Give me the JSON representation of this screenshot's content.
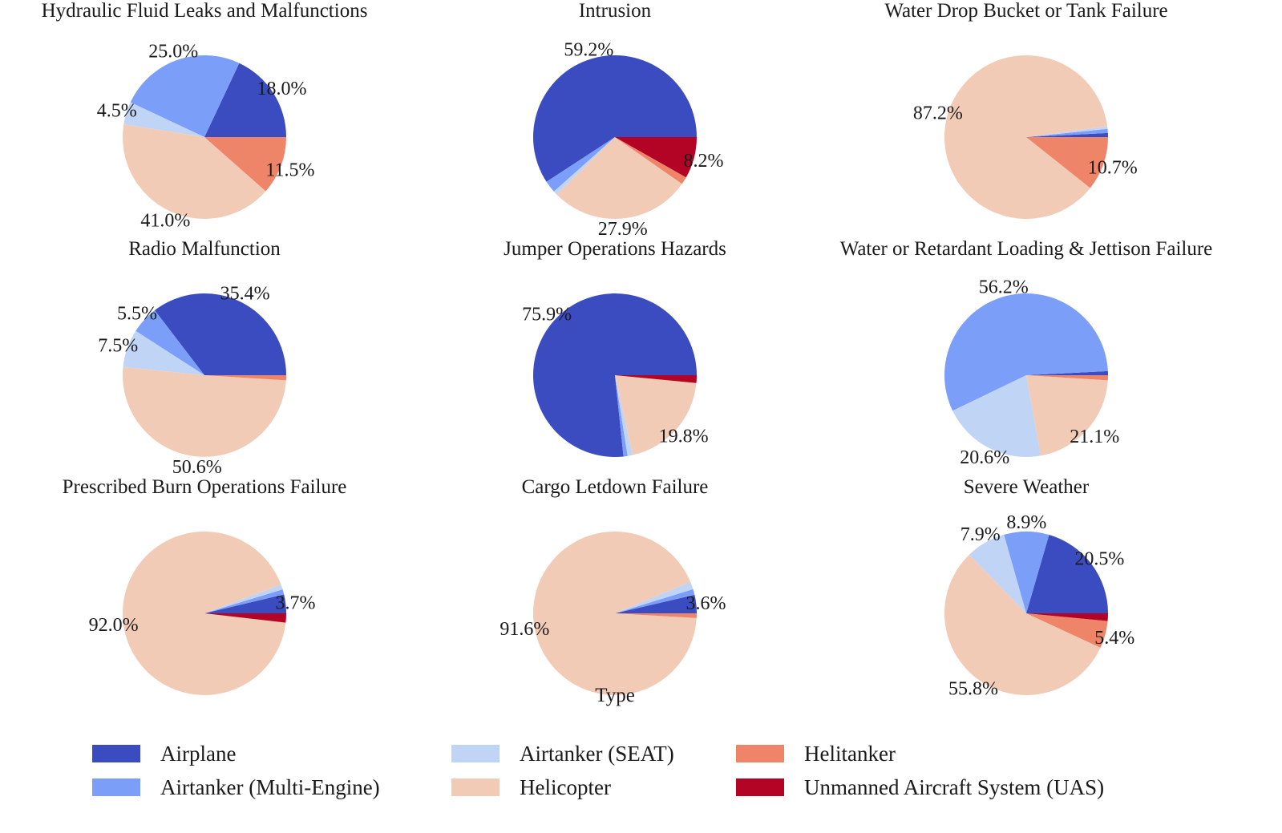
{
  "legend": {
    "title": "Type",
    "items": [
      {
        "label": "Airplane",
        "color": "#3b4cc0"
      },
      {
        "label": "Airtanker (Multi-Engine)",
        "color": "#7b9ff9"
      },
      {
        "label": "Airtanker (SEAT)",
        "color": "#c0d4f5"
      },
      {
        "label": "Helicopter",
        "color": "#f2cbb7"
      },
      {
        "label": "Helitanker",
        "color": "#ee8468"
      },
      {
        "label": "Unmanned Aircraft System (UAS)",
        "color": "#b40426"
      }
    ]
  },
  "chart_data": [
    {
      "type": "pie",
      "title": "Hydraulic Fluid Leaks and Malfunctions",
      "categories": [
        "Airplane",
        "Airtanker (Multi-Engine)",
        "Airtanker (SEAT)",
        "Helicopter",
        "Helitanker",
        "Unmanned Aircraft System (UAS)"
      ],
      "values": [
        18.0,
        25.0,
        4.5,
        41.0,
        11.5,
        0.0
      ],
      "labels": [
        "18.0%",
        "25.0%",
        "4.5%",
        "41.0%",
        "11.5%",
        ""
      ]
    },
    {
      "type": "pie",
      "title": "Intrusion",
      "categories": [
        "Airplane",
        "Airtanker (Multi-Engine)",
        "Airtanker (SEAT)",
        "Helicopter",
        "Helitanker",
        "Unmanned Aircraft System (UAS)"
      ],
      "values": [
        59.2,
        2.4,
        0.8,
        27.9,
        1.5,
        8.2
      ],
      "labels": [
        "59.2%",
        "",
        "",
        "27.9%",
        "",
        "8.2%"
      ]
    },
    {
      "type": "pie",
      "title": "Water Drop Bucket or Tank Failure",
      "categories": [
        "Airplane",
        "Airtanker (Multi-Engine)",
        "Airtanker (SEAT)",
        "Helicopter",
        "Helitanker",
        "Unmanned Aircraft System (UAS)"
      ],
      "values": [
        0.8,
        0.8,
        0.5,
        87.2,
        10.7,
        0.0
      ],
      "labels": [
        "",
        "",
        "",
        "87.2%",
        "10.7%",
        ""
      ]
    },
    {
      "type": "pie",
      "title": "Radio Malfunction",
      "categories": [
        "Airplane",
        "Airtanker (Multi-Engine)",
        "Airtanker (SEAT)",
        "Helicopter",
        "Helitanker",
        "Unmanned Aircraft System (UAS)"
      ],
      "values": [
        35.4,
        5.5,
        7.5,
        50.6,
        1.0,
        0.0
      ],
      "labels": [
        "35.4%",
        "5.5%",
        "7.5%",
        "50.6%",
        "",
        ""
      ]
    },
    {
      "type": "pie",
      "title": "Jumper Operations Hazards",
      "categories": [
        "Airplane",
        "Airtanker (Multi-Engine)",
        "Airtanker (SEAT)",
        "Helicopter",
        "Helitanker",
        "Unmanned Aircraft System (UAS)"
      ],
      "values": [
        75.9,
        0.8,
        1.0,
        19.8,
        0.0,
        1.5
      ],
      "labels": [
        "75.9%",
        "",
        "",
        "19.8%",
        "",
        ""
      ]
    },
    {
      "type": "pie",
      "title": "Water or Retardant Loading & Jettison Failure",
      "categories": [
        "Airplane",
        "Airtanker (Multi-Engine)",
        "Airtanker (SEAT)",
        "Helicopter",
        "Helitanker",
        "Unmanned Aircraft System (UAS)"
      ],
      "values": [
        0.8,
        56.2,
        20.6,
        21.1,
        1.0,
        0.0
      ],
      "labels": [
        "",
        "56.2%",
        "20.6%",
        "21.1%",
        "",
        ""
      ]
    },
    {
      "type": "pie",
      "title": "Prescribed Burn Operations Failure",
      "categories": [
        "Airplane",
        "Airtanker (Multi-Engine)",
        "Airtanker (SEAT)",
        "Helicopter",
        "Helitanker",
        "Unmanned Aircraft System (UAS)"
      ],
      "values": [
        3.7,
        1.0,
        1.0,
        92.0,
        0.0,
        1.8
      ],
      "labels": [
        "3.7%",
        "",
        "",
        "92.0%",
        "",
        ""
      ]
    },
    {
      "type": "pie",
      "title": "Cargo Letdown Failure",
      "categories": [
        "Airplane",
        "Airtanker (Multi-Engine)",
        "Airtanker (SEAT)",
        "Helicopter",
        "Helitanker",
        "Unmanned Aircraft System (UAS)"
      ],
      "values": [
        3.6,
        1.1,
        1.5,
        91.6,
        0.9,
        0.0
      ],
      "labels": [
        "3.6%",
        "",
        "",
        "91.6%",
        "",
        ""
      ]
    },
    {
      "type": "pie",
      "title": "Severe Weather",
      "categories": [
        "Airplane",
        "Airtanker (Multi-Engine)",
        "Airtanker (SEAT)",
        "Helicopter",
        "Helitanker",
        "Unmanned Aircraft System (UAS)"
      ],
      "values": [
        20.5,
        8.9,
        7.9,
        55.8,
        5.4,
        1.5
      ],
      "labels": [
        "20.5%",
        "8.9%",
        "7.9%",
        "55.8%",
        "5.4%",
        ""
      ]
    }
  ]
}
